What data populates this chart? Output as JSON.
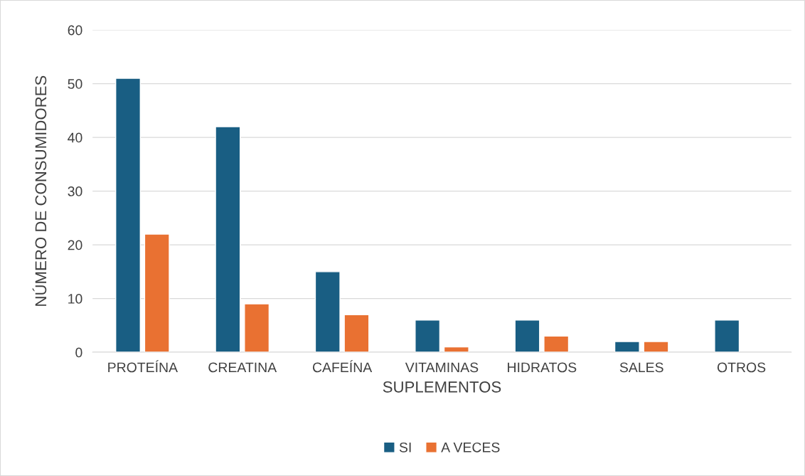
{
  "chart_data": {
    "type": "bar",
    "xlabel": "SUPLEMENTOS",
    "ylabel": "NÚMERO DE CONSUMIDORES",
    "categories": [
      "PROTEÍNA",
      "CREATINA",
      "CAFEÍNA",
      "VITAMINAS",
      "HIDRATOS",
      "SALES",
      "OTROS"
    ],
    "series": [
      {
        "name": "SI",
        "color": "#195e83",
        "values": [
          51,
          42,
          15,
          6,
          6,
          2,
          6
        ]
      },
      {
        "name": "A VECES",
        "color": "#e97132",
        "values": [
          22,
          9,
          7,
          1,
          3,
          2,
          null
        ]
      }
    ],
    "ylim": [
      0,
      60
    ],
    "yticks": [
      0,
      10,
      20,
      30,
      40,
      50,
      60
    ],
    "grid": "y",
    "legend": "bottom"
  }
}
